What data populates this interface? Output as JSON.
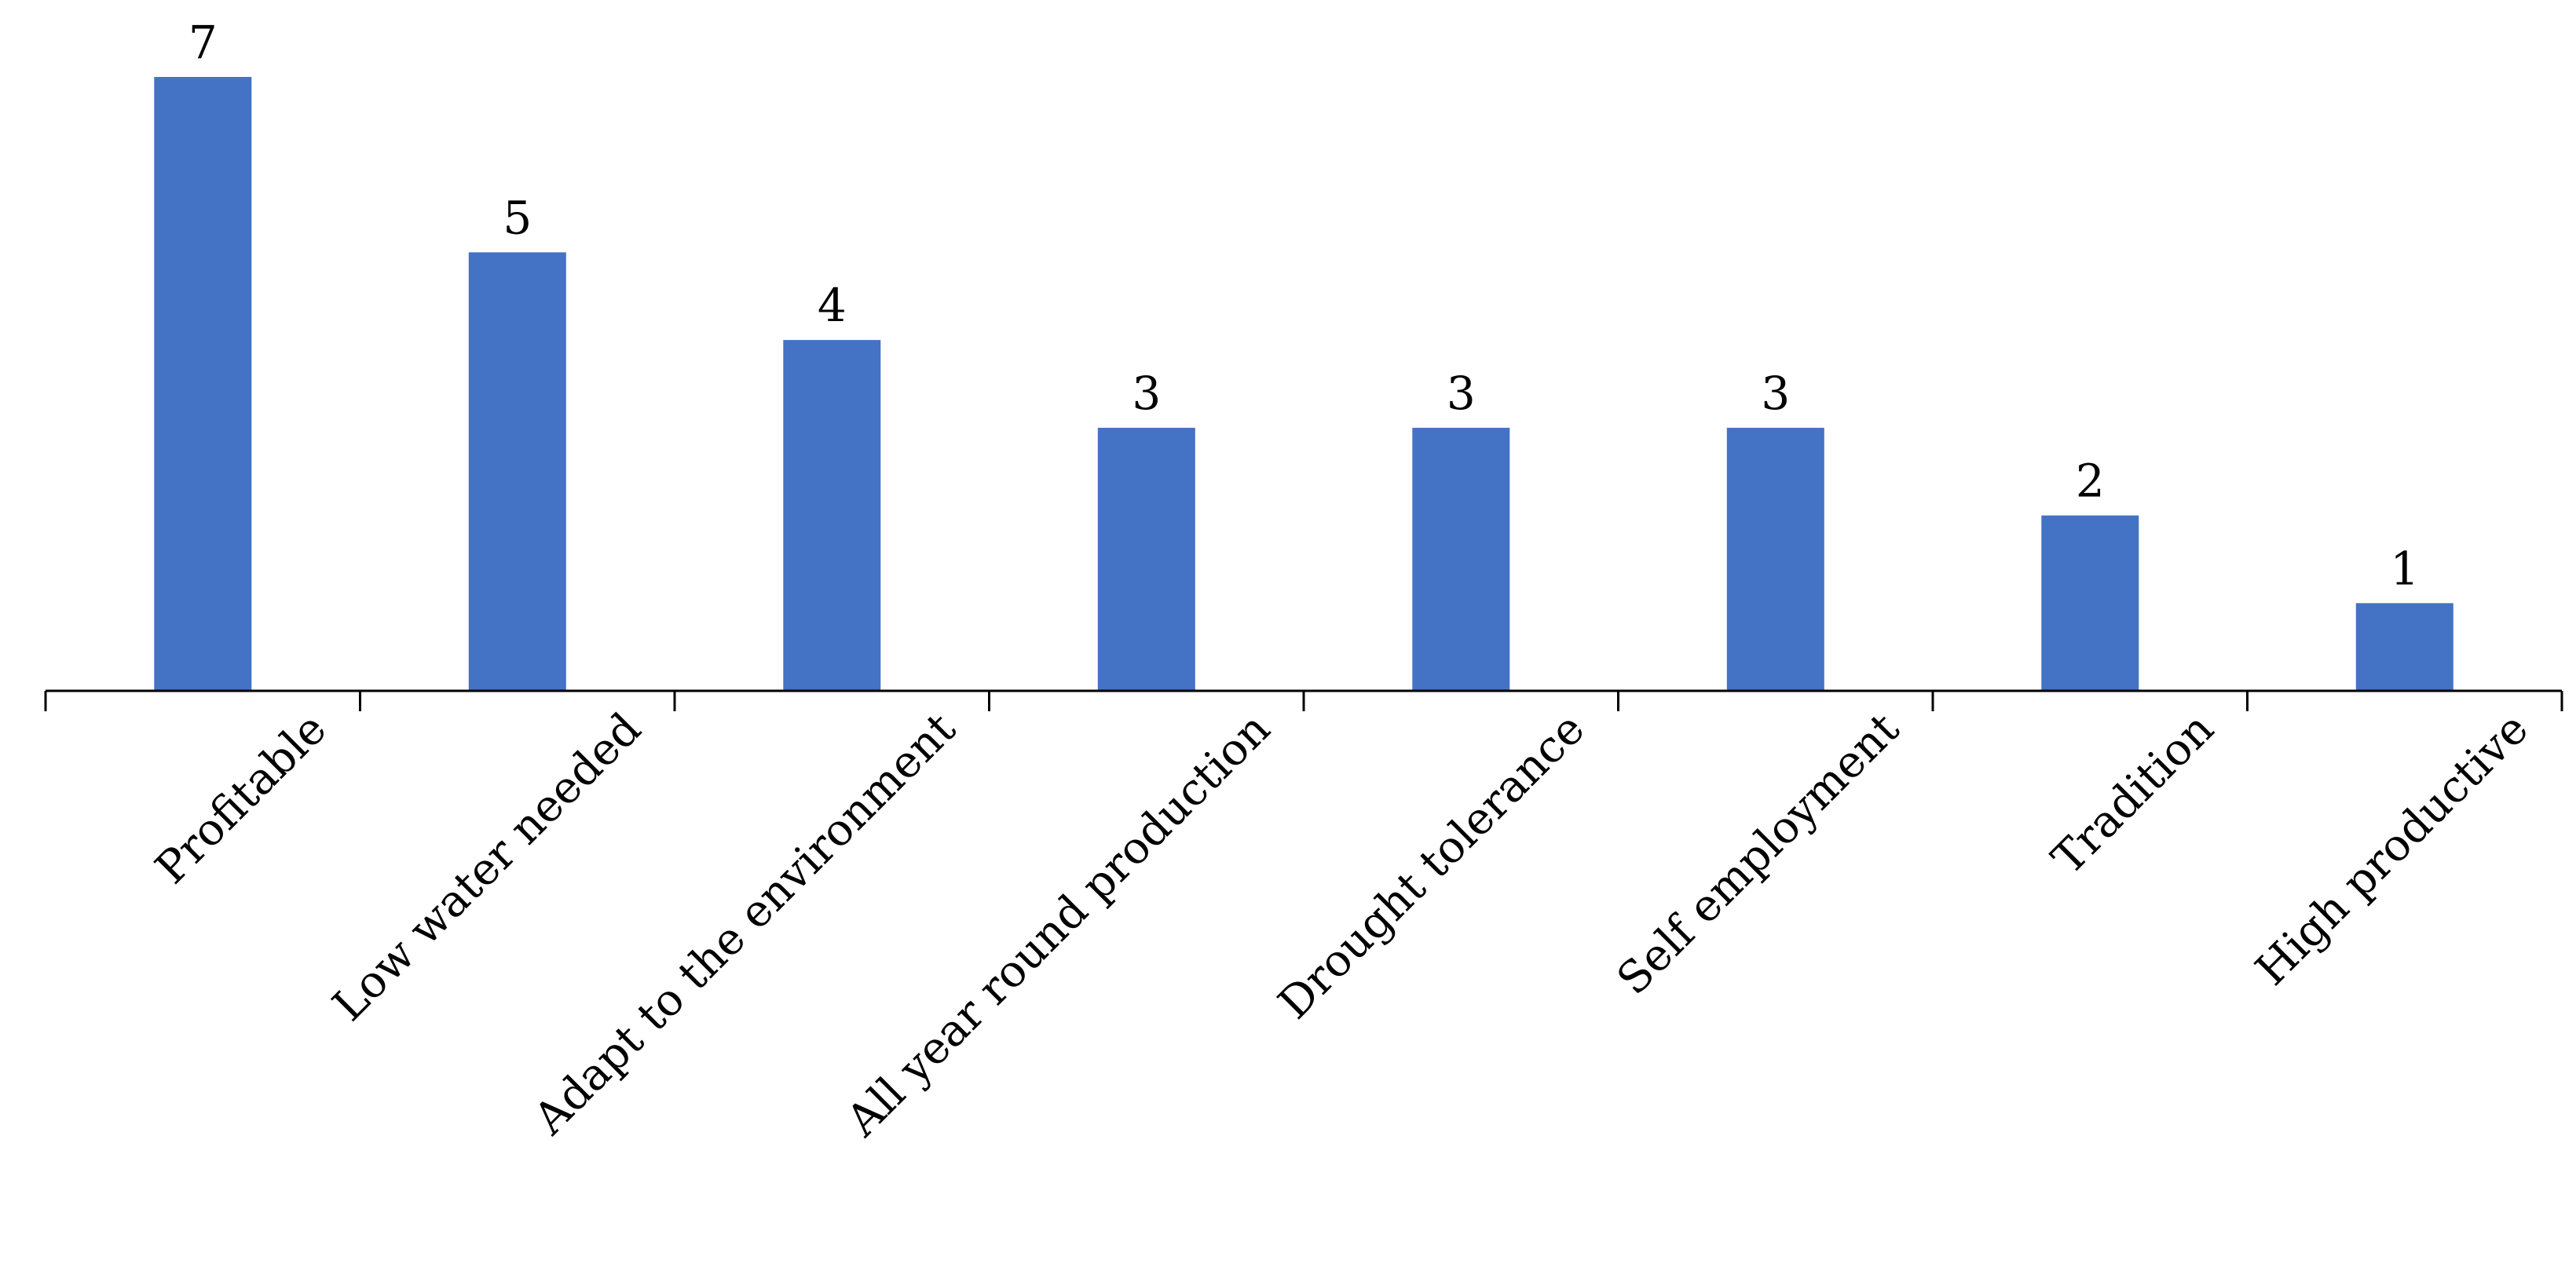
{
  "chart_data": {
    "type": "bar",
    "categories": [
      "Profitable",
      "Low water needed",
      "Adapt to the environment",
      "All year round production",
      "Drought tolerance",
      "Self employment",
      "Tradition",
      "High productive"
    ],
    "values": [
      7,
      5,
      4,
      3,
      3,
      3,
      2,
      1
    ],
    "data_labels": [
      "7",
      "5",
      "4",
      "3",
      "3",
      "3",
      "2",
      "1"
    ],
    "title": "",
    "xlabel": "",
    "ylabel": "",
    "ylim": [
      0,
      7
    ],
    "bar_color": "#4472C4",
    "grid": false,
    "legend": "none",
    "y_axis_visible": false
  }
}
